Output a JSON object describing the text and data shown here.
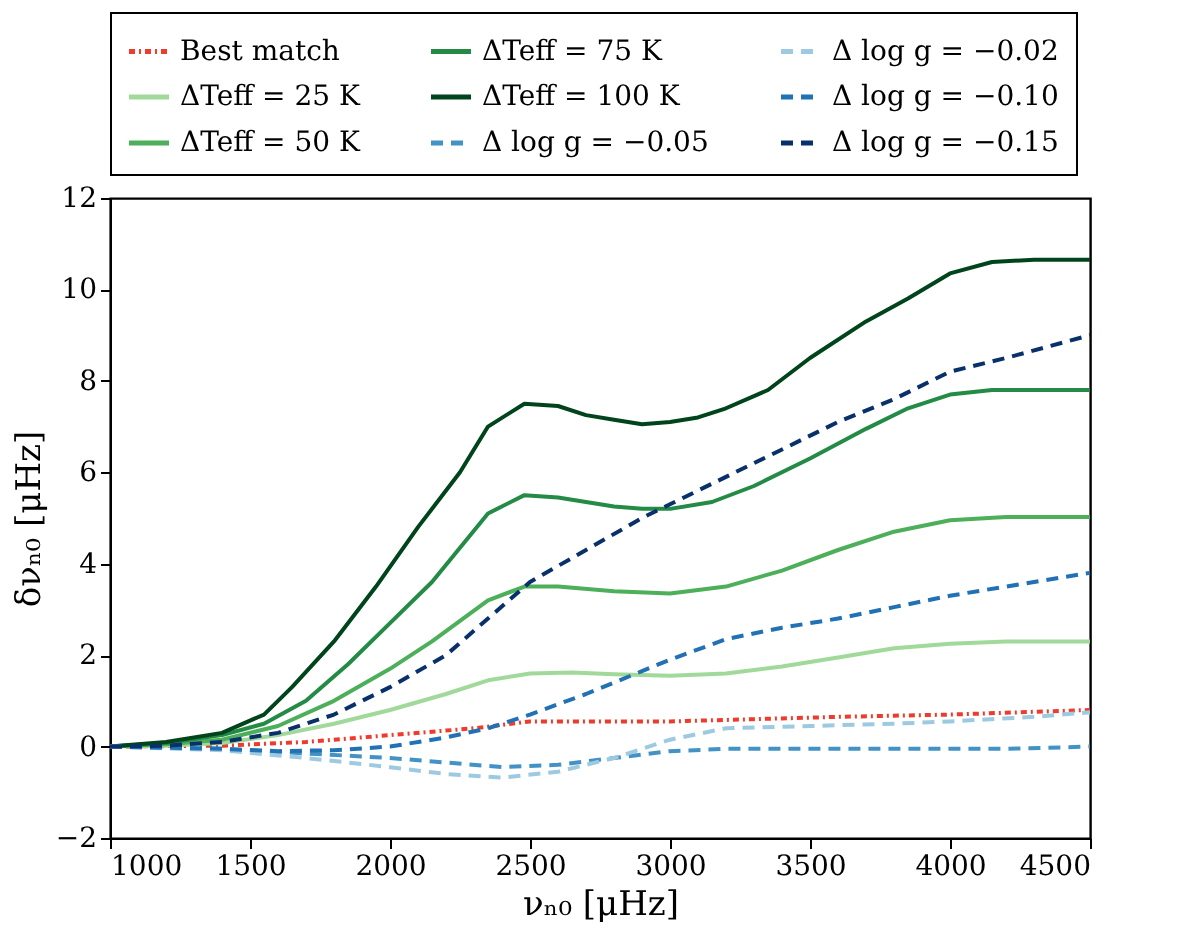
{
  "chart_data": {
    "type": "line",
    "xlabel": "νₙ₀ [μHz]",
    "ylabel": "δνₙ₀ [μHz]",
    "xlim": [
      1000,
      4500
    ],
    "ylim": [
      -2,
      12
    ],
    "xticks": [
      1000,
      1500,
      2000,
      2500,
      3000,
      3500,
      4000,
      4500
    ],
    "yticks": [
      -2,
      0,
      2,
      4,
      6,
      8,
      10,
      12
    ],
    "grid": false,
    "legend": "top",
    "series": [
      {
        "name": "Best match",
        "color": "#ef3b2c",
        "line_style": "dotted",
        "x": [
          1000,
          1400,
          1700,
          2000,
          2300,
          2500,
          2700,
          3000,
          3300,
          3600,
          4000,
          4500
        ],
        "values": [
          0,
          0.02,
          0.1,
          0.25,
          0.4,
          0.55,
          0.55,
          0.55,
          0.6,
          0.65,
          0.7,
          0.8
        ]
      },
      {
        "name": "ΔTeff = 25 K",
        "color": "#a1d99b",
        "line_style": "solid",
        "x": [
          1000,
          1200,
          1400,
          1600,
          1800,
          2000,
          2200,
          2350,
          2500,
          2650,
          2800,
          3000,
          3200,
          3400,
          3600,
          3800,
          4000,
          4200,
          4500
        ],
        "values": [
          0,
          0.02,
          0.08,
          0.25,
          0.5,
          0.8,
          1.15,
          1.45,
          1.6,
          1.62,
          1.58,
          1.55,
          1.6,
          1.75,
          1.95,
          2.15,
          2.25,
          2.3,
          2.3
        ]
      },
      {
        "name": "ΔTeff = 50 K",
        "color": "#4daf5a",
        "line_style": "solid",
        "x": [
          1000,
          1200,
          1400,
          1600,
          1800,
          2000,
          2150,
          2350,
          2480,
          2600,
          2800,
          3000,
          3200,
          3400,
          3600,
          3800,
          4000,
          4200,
          4500
        ],
        "values": [
          0,
          0.05,
          0.15,
          0.45,
          1.0,
          1.7,
          2.3,
          3.2,
          3.5,
          3.5,
          3.4,
          3.35,
          3.5,
          3.85,
          4.3,
          4.7,
          4.95,
          5.02,
          5.02
        ]
      },
      {
        "name": "ΔTeff = 75 K",
        "color": "#238b45",
        "line_style": "solid",
        "x": [
          1000,
          1200,
          1400,
          1550,
          1700,
          1850,
          2000,
          2150,
          2350,
          2480,
          2600,
          2800,
          2900,
          3000,
          3150,
          3300,
          3500,
          3700,
          3850,
          4000,
          4150,
          4500
        ],
        "values": [
          0,
          0.08,
          0.25,
          0.5,
          1.0,
          1.8,
          2.7,
          3.6,
          5.1,
          5.5,
          5.45,
          5.25,
          5.2,
          5.2,
          5.35,
          5.7,
          6.3,
          6.95,
          7.4,
          7.7,
          7.8,
          7.8
        ]
      },
      {
        "name": "ΔTeff = 100 K",
        "color": "#00441b",
        "line_style": "solid",
        "x": [
          1000,
          1200,
          1400,
          1550,
          1650,
          1800,
          1950,
          2100,
          2250,
          2350,
          2480,
          2600,
          2700,
          2800,
          2900,
          3000,
          3100,
          3200,
          3350,
          3500,
          3700,
          3850,
          4000,
          4150,
          4300,
          4500
        ],
        "values": [
          0,
          0.1,
          0.3,
          0.7,
          1.3,
          2.3,
          3.5,
          4.8,
          6.0,
          7.0,
          7.5,
          7.45,
          7.25,
          7.15,
          7.05,
          7.1,
          7.2,
          7.4,
          7.8,
          8.5,
          9.3,
          9.8,
          10.35,
          10.6,
          10.65,
          10.65
        ]
      },
      {
        "name": "Δ log g = −0.05",
        "color": "#4292c6",
        "line_style": "dashed",
        "x": [
          1000,
          1400,
          1700,
          2000,
          2200,
          2400,
          2600,
          2800,
          3000,
          3200,
          3500,
          3800,
          4200,
          4500
        ],
        "values": [
          0,
          -0.05,
          -0.15,
          -0.25,
          -0.35,
          -0.45,
          -0.4,
          -0.25,
          -0.1,
          -0.05,
          -0.05,
          -0.05,
          -0.05,
          0
        ]
      },
      {
        "name": "Δ log g = −0.02",
        "color": "#9ecae1",
        "line_style": "dashed",
        "x": [
          1000,
          1400,
          1700,
          2000,
          2200,
          2400,
          2600,
          2800,
          3000,
          3200,
          3500,
          3800,
          4000,
          4300,
          4500
        ],
        "values": [
          0,
          -0.08,
          -0.25,
          -0.45,
          -0.6,
          -0.68,
          -0.55,
          -0.25,
          0.15,
          0.4,
          0.45,
          0.5,
          0.55,
          0.65,
          0.75
        ]
      },
      {
        "name": "Δ log g = −0.10",
        "color": "#2171b5",
        "line_style": "dashed",
        "x": [
          1000,
          1400,
          1600,
          1800,
          2000,
          2200,
          2350,
          2500,
          2700,
          2900,
          3000,
          3200,
          3400,
          3600,
          3800,
          4000,
          4200,
          4500
        ],
        "values": [
          0,
          -0.05,
          -0.1,
          -0.08,
          0,
          0.2,
          0.4,
          0.7,
          1.15,
          1.65,
          1.9,
          2.35,
          2.6,
          2.8,
          3.05,
          3.3,
          3.5,
          3.8
        ]
      },
      {
        "name": "Δ log g = −0.15",
        "color": "#08306b",
        "line_style": "dashed",
        "x": [
          1000,
          1200,
          1400,
          1600,
          1800,
          2000,
          2200,
          2350,
          2500,
          2700,
          2900,
          3000,
          3200,
          3400,
          3600,
          3800,
          4000,
          4200,
          4500
        ],
        "values": [
          0,
          0.02,
          0.1,
          0.3,
          0.7,
          1.3,
          2.0,
          2.8,
          3.6,
          4.3,
          5.0,
          5.3,
          5.9,
          6.5,
          7.1,
          7.6,
          8.2,
          8.5,
          9.0
        ]
      }
    ]
  }
}
